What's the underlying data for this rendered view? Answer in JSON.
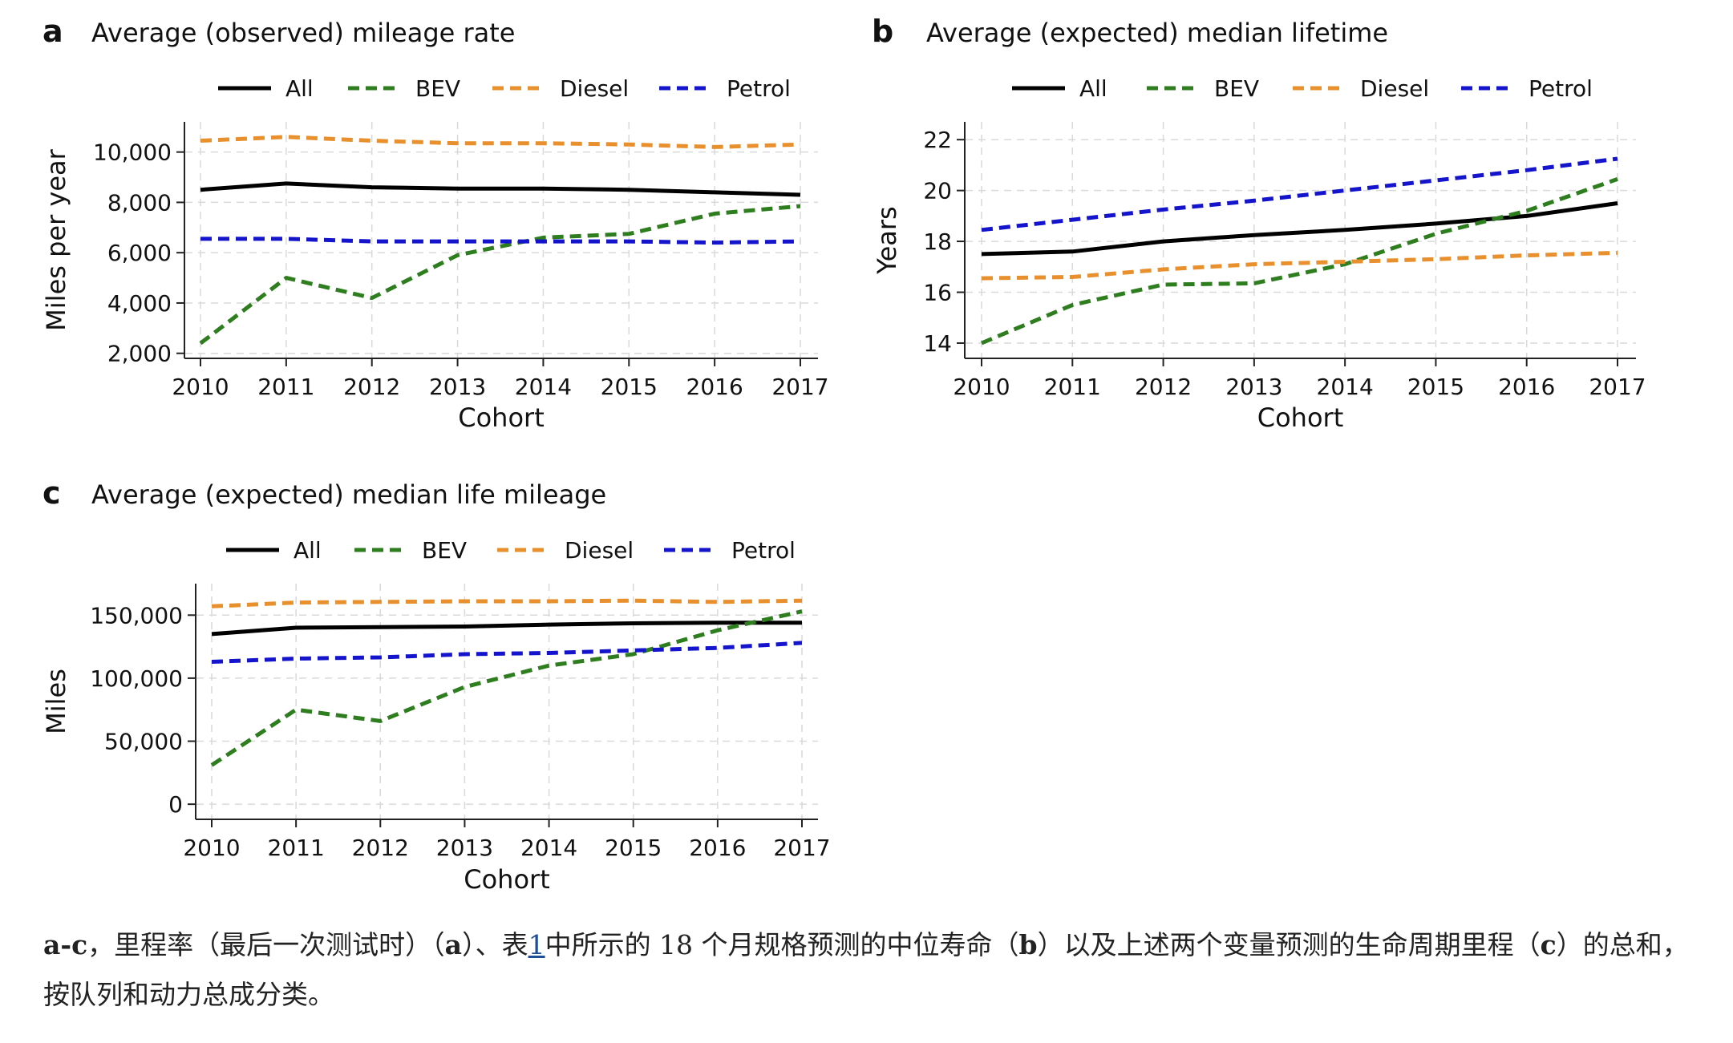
{
  "colors": {
    "All": "#000000",
    "BEV": "#2e7d1f",
    "Diesel": "#e8902e",
    "Petrol": "#1414cc",
    "grid": "#d9d9d9"
  },
  "chart_data": [
    {
      "panel": "a",
      "type": "line",
      "title": "Average (observed) mileage rate",
      "xlabel": "Cohort",
      "ylabel": "Miles per year",
      "x": [
        2010,
        2011,
        2012,
        2013,
        2014,
        2015,
        2016,
        2017
      ],
      "x_ticks": [
        "2010",
        "2011",
        "2012",
        "2013",
        "2014",
        "2015",
        "2016",
        "2017"
      ],
      "ylim": [
        1800,
        11200
      ],
      "y_ticks": [
        2000,
        4000,
        6000,
        8000,
        10000
      ],
      "y_tick_labels": [
        "2,000",
        "4,000",
        "6,000",
        "8,000",
        "10,000"
      ],
      "grid": true,
      "legend": "top",
      "series": [
        {
          "name": "All",
          "style": "solid",
          "values": [
            8500,
            8750,
            8600,
            8550,
            8550,
            8500,
            8400,
            8300
          ]
        },
        {
          "name": "BEV",
          "style": "dashed",
          "values": [
            2400,
            5000,
            4200,
            5900,
            6600,
            6750,
            7550,
            7850
          ]
        },
        {
          "name": "Diesel",
          "style": "dashed",
          "values": [
            10450,
            10600,
            10450,
            10350,
            10350,
            10300,
            10200,
            10300
          ]
        },
        {
          "name": "Petrol",
          "style": "dashed",
          "values": [
            6550,
            6550,
            6450,
            6450,
            6450,
            6450,
            6400,
            6450
          ]
        }
      ]
    },
    {
      "panel": "b",
      "type": "line",
      "title": "Average (expected) median lifetime",
      "xlabel": "Cohort",
      "ylabel": "Years",
      "x": [
        2010,
        2011,
        2012,
        2013,
        2014,
        2015,
        2016,
        2017
      ],
      "x_ticks": [
        "2010",
        "2011",
        "2012",
        "2013",
        "2014",
        "2015",
        "2016",
        "2017"
      ],
      "ylim": [
        13.4,
        22.7
      ],
      "y_ticks": [
        14,
        16,
        18,
        20,
        22
      ],
      "y_tick_labels": [
        "14",
        "16",
        "18",
        "20",
        "22"
      ],
      "grid": true,
      "legend": "top",
      "series": [
        {
          "name": "All",
          "style": "solid",
          "values": [
            17.5,
            17.6,
            18.0,
            18.25,
            18.45,
            18.7,
            19.0,
            19.5
          ]
        },
        {
          "name": "BEV",
          "style": "dashed",
          "values": [
            14.0,
            15.5,
            16.3,
            16.35,
            17.1,
            18.3,
            19.2,
            20.45
          ]
        },
        {
          "name": "Diesel",
          "style": "dashed",
          "values": [
            16.55,
            16.6,
            16.9,
            17.1,
            17.2,
            17.3,
            17.45,
            17.55
          ]
        },
        {
          "name": "Petrol",
          "style": "dashed",
          "values": [
            18.45,
            18.85,
            19.25,
            19.6,
            20.0,
            20.4,
            20.8,
            21.25
          ]
        }
      ]
    },
    {
      "panel": "c",
      "type": "line",
      "title": "Average (expected) median life mileage",
      "xlabel": "Cohort",
      "ylabel": "Miles",
      "x": [
        2010,
        2011,
        2012,
        2013,
        2014,
        2015,
        2016,
        2017
      ],
      "x_ticks": [
        "2010",
        "2011",
        "2012",
        "2013",
        "2014",
        "2015",
        "2016",
        "2017"
      ],
      "ylim": [
        -12000,
        175000
      ],
      "y_ticks": [
        0,
        50000,
        100000,
        150000
      ],
      "y_tick_labels": [
        "0",
        "50,000",
        "100,000",
        "150,000"
      ],
      "grid": true,
      "legend": "top",
      "series": [
        {
          "name": "All",
          "style": "solid",
          "values": [
            135000,
            140000,
            140500,
            141000,
            142500,
            143500,
            144000,
            144000
          ]
        },
        {
          "name": "BEV",
          "style": "dashed",
          "values": [
            31000,
            75000,
            66000,
            93000,
            110000,
            119000,
            138000,
            153000
          ]
        },
        {
          "name": "Diesel",
          "style": "dashed",
          "values": [
            157000,
            160000,
            160500,
            161000,
            161000,
            161500,
            160500,
            161500
          ]
        },
        {
          "name": "Petrol",
          "style": "dashed",
          "values": [
            113000,
            115500,
            116500,
            119000,
            120000,
            122000,
            124000,
            128000
          ]
        }
      ]
    }
  ],
  "caption": {
    "range_label": "a-c",
    "sep": "，",
    "t1": "里程率（最后一次测试时）（",
    "a": "a",
    "t2": "）、表",
    "ref": "1",
    "t3": "中所示的 18 个月规格预测的中位寿命（",
    "b": "b",
    "t4": "）以及上述两个变量预测的生命周期里程（",
    "c": "c",
    "t5": "）的总和，按队列和动力总成分类。"
  }
}
